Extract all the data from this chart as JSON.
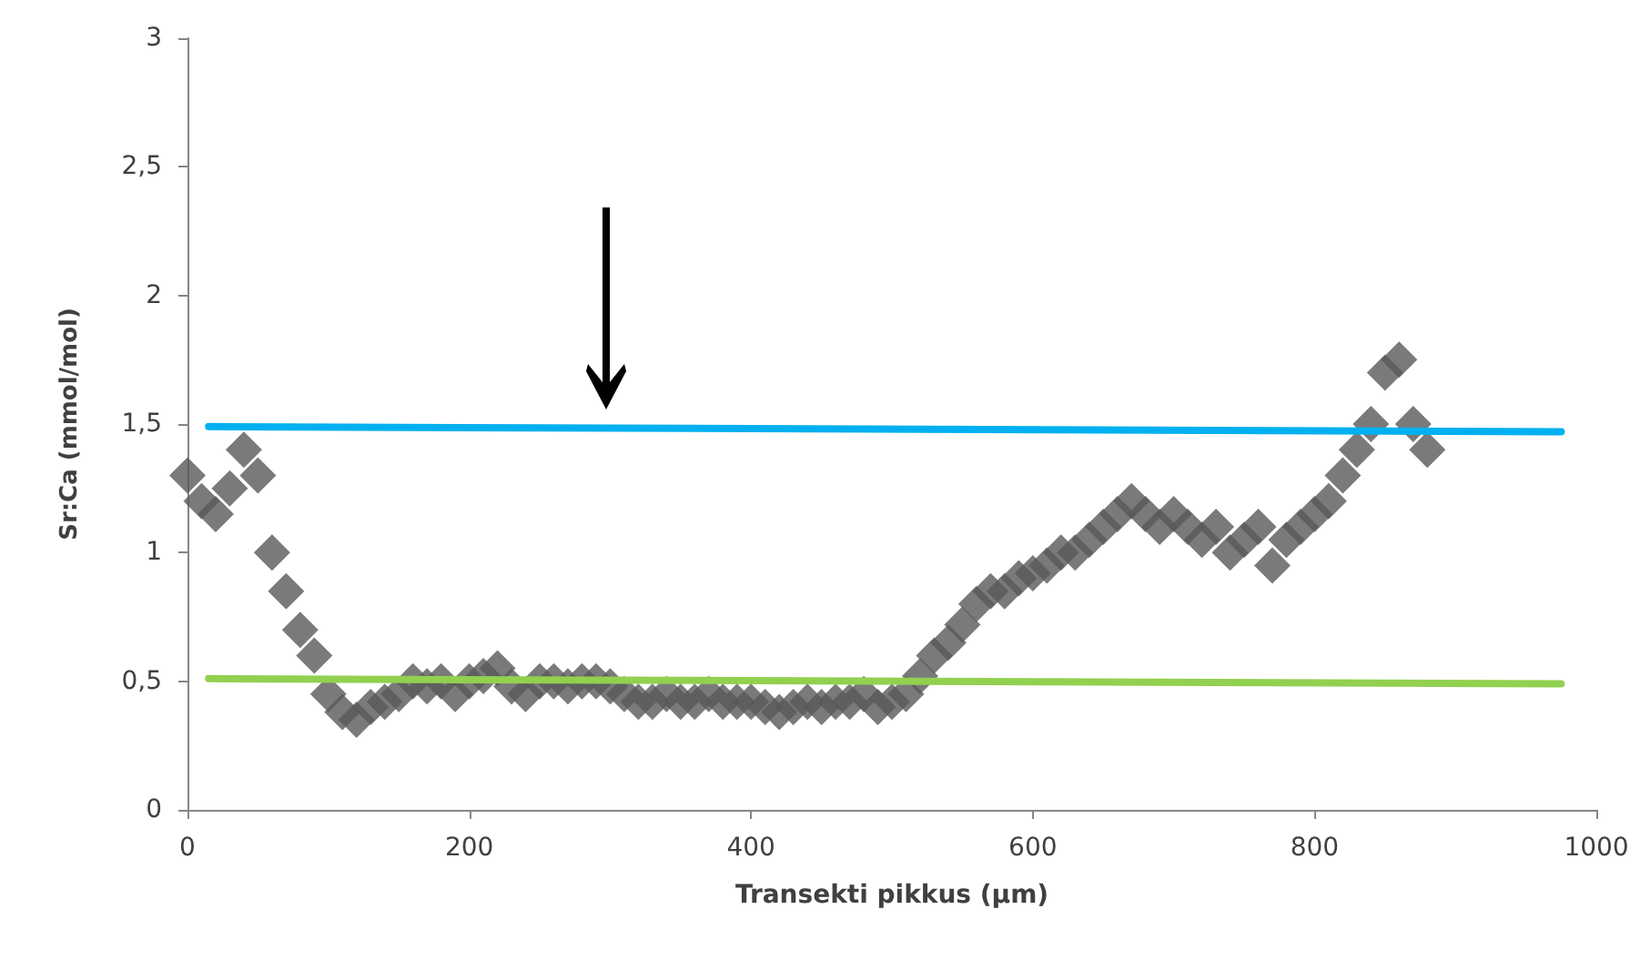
{
  "chart_data": {
    "type": "scatter",
    "xlabel": "Transekti pikkus (µm)",
    "ylabel": "Sr:Ca (mmol/mol)",
    "xlim": [
      0,
      1000
    ],
    "xticks": [
      0,
      200,
      400,
      600,
      800,
      1000
    ],
    "ylim": [
      0,
      3
    ],
    "yticks": [
      0,
      {
        "value": 0.5,
        "label": "0,5"
      },
      1,
      {
        "value": 1.5,
        "label": "1,5"
      },
      2,
      {
        "value": 2.5,
        "label": "2,5"
      },
      3
    ],
    "grid": false,
    "series": [
      {
        "type": "scatter",
        "marker": "diamond",
        "color": "#595959",
        "x": [
          0,
          10,
          20,
          30,
          40,
          50,
          60,
          70,
          80,
          90,
          100,
          110,
          120,
          130,
          140,
          150,
          160,
          170,
          180,
          190,
          200,
          210,
          220,
          230,
          240,
          250,
          260,
          270,
          280,
          290,
          300,
          310,
          320,
          330,
          340,
          350,
          360,
          370,
          380,
          390,
          400,
          410,
          420,
          430,
          440,
          450,
          460,
          470,
          480,
          490,
          500,
          510,
          520,
          530,
          540,
          550,
          560,
          570,
          580,
          590,
          600,
          610,
          620,
          630,
          640,
          650,
          660,
          670,
          680,
          690,
          700,
          710,
          720,
          730,
          740,
          750,
          760,
          770,
          780,
          790,
          800,
          810,
          820,
          830,
          840,
          850,
          860,
          870,
          880
        ],
        "values": [
          1.3,
          1.2,
          1.15,
          1.25,
          1.4,
          1.3,
          1.0,
          0.85,
          0.7,
          0.6,
          0.45,
          0.38,
          0.35,
          0.4,
          0.42,
          0.45,
          0.5,
          0.48,
          0.5,
          0.45,
          0.5,
          0.52,
          0.55,
          0.48,
          0.45,
          0.5,
          0.5,
          0.48,
          0.5,
          0.5,
          0.48,
          0.45,
          0.42,
          0.42,
          0.45,
          0.42,
          0.42,
          0.45,
          0.42,
          0.42,
          0.42,
          0.4,
          0.38,
          0.4,
          0.42,
          0.4,
          0.42,
          0.42,
          0.45,
          0.4,
          0.42,
          0.45,
          0.52,
          0.6,
          0.65,
          0.72,
          0.8,
          0.85,
          0.85,
          0.9,
          0.92,
          0.95,
          1.0,
          1.0,
          1.05,
          1.1,
          1.15,
          1.2,
          1.15,
          1.1,
          1.15,
          1.1,
          1.05,
          1.1,
          1.0,
          1.05,
          1.1,
          0.95,
          1.05,
          1.1,
          1.15,
          1.2,
          1.3,
          1.4,
          1.5,
          1.7,
          1.75,
          1.5,
          1.4
        ]
      },
      {
        "type": "line",
        "marker": "none",
        "color": "#00b0f0",
        "x": [
          15,
          975
        ],
        "values": [
          1.49,
          1.47
        ]
      },
      {
        "type": "line",
        "marker": "none",
        "color": "#92d050",
        "x": [
          15,
          975
        ],
        "values": [
          0.51,
          0.49
        ]
      }
    ]
  }
}
